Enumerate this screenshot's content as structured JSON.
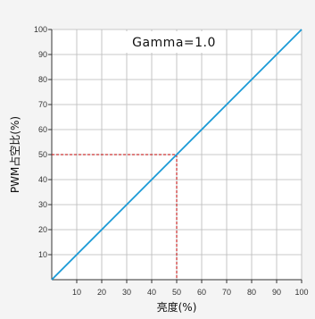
{
  "chart_data": {
    "type": "line",
    "annotation": "Gamma=1.0",
    "xlabel": "亮度(%)",
    "ylabel": "PWM占空比(%)",
    "xlim": [
      0,
      100
    ],
    "ylim": [
      0,
      100
    ],
    "xticks": [
      "10",
      "20",
      "30",
      "40",
      "50",
      "60",
      "70",
      "80",
      "90",
      "100"
    ],
    "yticks": [
      "10",
      "20",
      "30",
      "40",
      "50",
      "60",
      "70",
      "80",
      "90",
      "100"
    ],
    "grid": true,
    "series": [
      {
        "x": [
          0,
          100
        ],
        "y": [
          0,
          100
        ],
        "color": "#1a9ad6"
      }
    ],
    "guide": {
      "x": 50,
      "y": 50,
      "color": "#c00000"
    }
  }
}
